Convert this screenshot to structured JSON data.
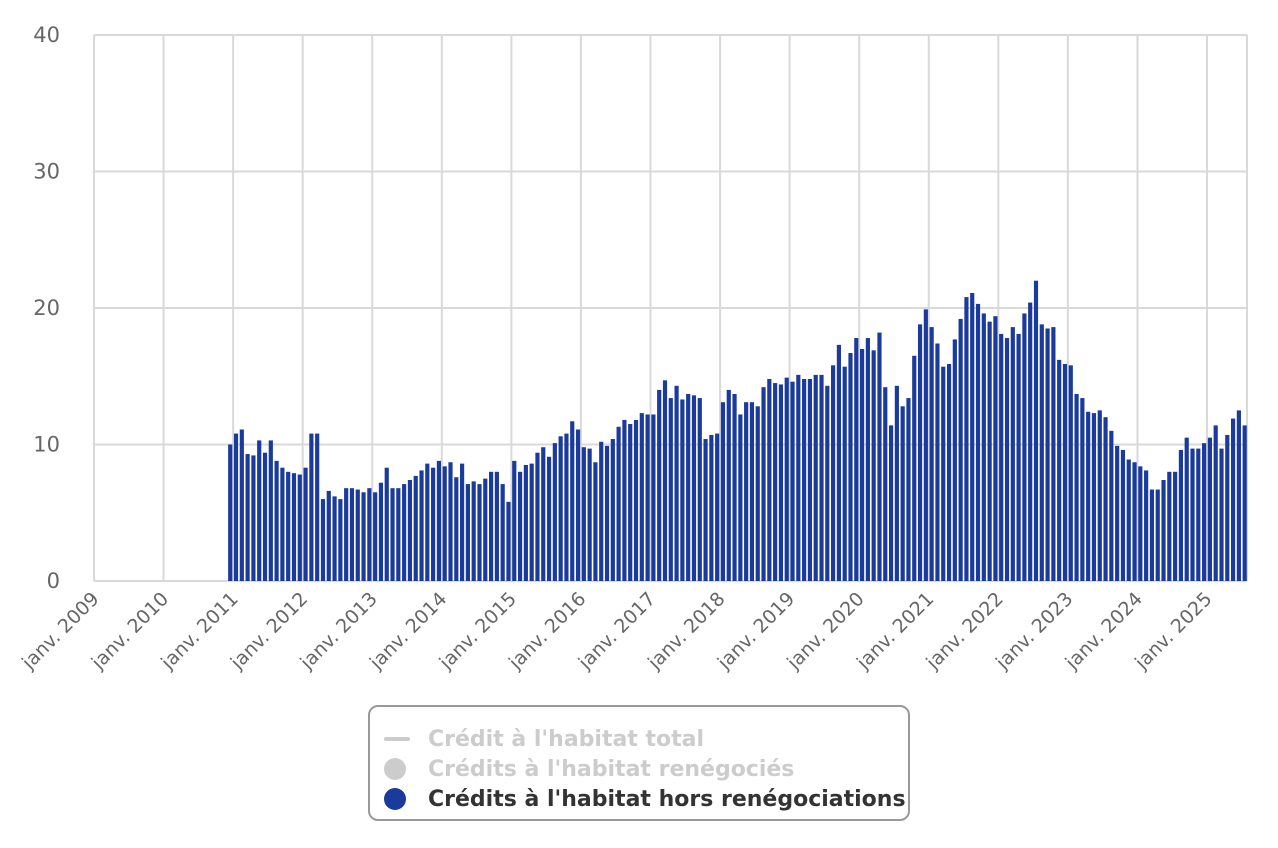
{
  "chart_data": {
    "type": "bar",
    "ylim": [
      0,
      40
    ],
    "yticks": [
      "0",
      "10",
      "20",
      "30",
      "40"
    ],
    "xticks": [
      "janv. 2009",
      "janv. 2010",
      "janv. 2011",
      "janv. 2012",
      "janv. 2013",
      "janv. 2014",
      "janv. 2015",
      "janv. 2016",
      "janv. 2017",
      "janv. 2018",
      "janv. 2019",
      "janv. 2020",
      "janv. 2021",
      "janv. 2022",
      "janv. 2023",
      "janv. 2024",
      "janv. 2025"
    ],
    "grid": true,
    "legend_position": "bottom-center",
    "series": [
      {
        "name": "Crédit à l'habitat total",
        "type": "line",
        "visible": false,
        "color": "#cccccc",
        "values": []
      },
      {
        "name": "Crédits à l'habitat renégociés",
        "type": "bar",
        "visible": false,
        "color": "#cccccc",
        "values": []
      },
      {
        "name": "Crédits à l'habitat hors renégociations",
        "type": "bar",
        "visible": true,
        "color": "#1a3a9c",
        "start": "2010-12",
        "values": [
          10.0,
          10.8,
          11.1,
          9.3,
          9.2,
          10.3,
          9.4,
          10.3,
          8.8,
          8.3,
          8.0,
          7.9,
          7.8,
          8.3,
          10.8,
          10.8,
          6.0,
          6.6,
          6.2,
          6.0,
          6.8,
          6.8,
          6.7,
          6.5,
          6.8,
          6.5,
          7.2,
          8.3,
          6.8,
          6.8,
          7.1,
          7.4,
          7.7,
          8.1,
          8.6,
          8.3,
          8.8,
          8.4,
          8.7,
          7.6,
          8.6,
          7.1,
          7.3,
          7.1,
          7.5,
          8.0,
          8.0,
          7.1,
          5.8,
          8.8,
          8.0,
          8.5,
          8.6,
          9.4,
          9.8,
          9.1,
          10.1,
          10.6,
          10.8,
          11.7,
          11.1,
          9.8,
          9.7,
          8.7,
          10.2,
          9.9,
          10.4,
          11.3,
          11.8,
          11.5,
          11.8,
          12.3,
          12.2,
          12.2,
          14.0,
          14.7,
          13.4,
          14.3,
          13.3,
          13.7,
          13.6,
          13.4,
          10.4,
          10.7,
          10.8,
          13.1,
          14.0,
          13.7,
          12.2,
          13.1,
          13.1,
          12.8,
          14.2,
          14.8,
          14.5,
          14.4,
          14.9,
          14.6,
          15.1,
          14.8,
          14.8,
          15.1,
          15.1,
          14.3,
          15.8,
          17.3,
          15.7,
          16.7,
          17.8,
          17.0,
          17.8,
          16.9,
          18.2,
          14.2,
          11.4,
          14.3,
          12.8,
          13.4,
          16.5,
          18.8,
          19.9,
          18.6,
          17.4,
          15.7,
          15.9,
          17.7,
          19.2,
          20.8,
          21.1,
          20.3,
          19.6,
          19.0,
          19.4,
          18.1,
          17.8,
          18.6,
          18.1,
          19.6,
          20.4,
          22.0,
          18.8,
          18.5,
          18.6,
          16.2,
          15.9,
          15.8,
          13.7,
          13.4,
          12.4,
          12.3,
          12.5,
          12.0,
          11.0,
          9.9,
          9.6,
          8.9,
          8.7,
          8.4,
          8.1,
          6.7,
          6.7,
          7.4,
          8.0,
          8.0,
          9.6,
          10.5,
          9.7,
          9.7,
          10.1,
          10.5,
          11.4,
          9.7,
          10.7,
          11.9,
          12.5,
          11.4
        ]
      }
    ]
  },
  "legend": {
    "items": [
      {
        "label": "Crédit à l'habitat total",
        "symbol": "line",
        "color": "#cccccc",
        "active": false
      },
      {
        "label": "Crédits à l'habitat renégociés",
        "symbol": "dot",
        "color": "#cccccc",
        "active": false
      },
      {
        "label": "Crédits à l'habitat hors renégociations",
        "symbol": "dot",
        "color": "#1a3a9c",
        "active": true
      }
    ]
  }
}
